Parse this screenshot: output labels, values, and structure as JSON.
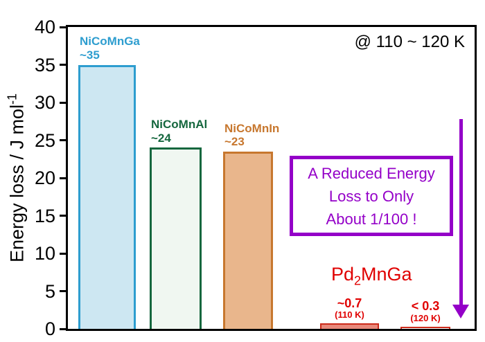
{
  "annotation": "@ 110 ~ 120 K",
  "ylabel": {
    "main": "Energy loss / J mol",
    "sup": "-1"
  },
  "callout": {
    "line1": "A Reduced Energy",
    "line2": "Loss to Only",
    "line3": "About 1/100 !"
  },
  "pd_label": {
    "pre": "Pd",
    "sub": "2",
    "post": "MnGa"
  },
  "colors": {
    "purple": "#9400c8",
    "red": "#e00000",
    "axis": "#000000"
  },
  "chart_data": {
    "type": "bar",
    "title": "",
    "ylabel": "Energy loss / J mol^-1",
    "ylim": [
      0,
      40
    ],
    "yticks": [
      0,
      5,
      10,
      15,
      20,
      25,
      30,
      35,
      40
    ],
    "grid": false,
    "annotation": "@ 110 ~ 120 K",
    "bars": [
      {
        "category": "NiCoMnGa",
        "value": 35,
        "value_label": "~35",
        "fill": "#cde7f2",
        "stroke": "#2d9dcf",
        "text_color": "#2d9dcf"
      },
      {
        "category": "NiCoMnAl",
        "value": 24,
        "value_label": "~24",
        "fill": "#f0f7f1",
        "stroke": "#15673e",
        "text_color": "#15673e"
      },
      {
        "category": "NiCoMnIn",
        "value": 23.5,
        "value_label": "~23",
        "fill": "#e9b68c",
        "stroke": "#c7772e",
        "text_color": "#c7772e"
      },
      {
        "category": "Pd2MnGa (110 K)",
        "value": 0.7,
        "value_label": "~0.7",
        "sub_label": "(110 K)",
        "fill": "#e8897b",
        "stroke": "#cc2a1a",
        "text_color": "#e00000"
      },
      {
        "category": "Pd2MnGa (120 K)",
        "value": 0.3,
        "value_label": "< 0.3",
        "sub_label": "(120 K)",
        "fill": "#ffffff",
        "stroke": "#cc2a1a",
        "text_color": "#e00000"
      }
    ]
  }
}
